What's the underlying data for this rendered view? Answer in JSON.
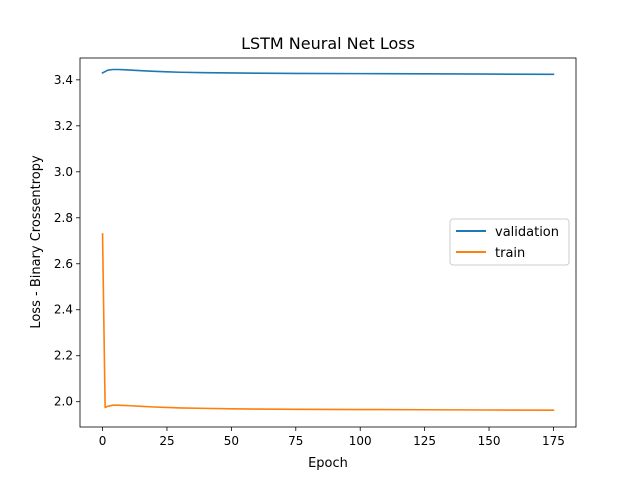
{
  "chart_data": {
    "type": "line",
    "title": "LSTM Neural Net Loss",
    "xlabel": "Epoch",
    "ylabel": "Loss - Binary Crossentropy",
    "xlim": [
      -8.75,
      183.75
    ],
    "ylim": [
      1.89,
      3.495
    ],
    "xticks": [
      0,
      25,
      50,
      75,
      100,
      125,
      150,
      175
    ],
    "yticks": [
      2.0,
      2.2,
      2.4,
      2.6,
      2.8,
      3.0,
      3.2,
      3.4
    ],
    "xtick_labels": [
      "0",
      "25",
      "50",
      "75",
      "100",
      "125",
      "150",
      "175"
    ],
    "ytick_labels": [
      "2.0",
      "2.2",
      "2.4",
      "2.6",
      "2.8",
      "3.0",
      "3.2",
      "3.4"
    ],
    "grid": false,
    "legend_position": "center-right",
    "series": [
      {
        "name": "validation",
        "color": "#1f77b4",
        "x": [
          0,
          2,
          4,
          6,
          8,
          10,
          15,
          20,
          25,
          30,
          40,
          50,
          60,
          75,
          100,
          125,
          150,
          175
        ],
        "y": [
          3.43,
          3.442,
          3.445,
          3.445,
          3.444,
          3.443,
          3.44,
          3.437,
          3.435,
          3.433,
          3.431,
          3.43,
          3.429,
          3.428,
          3.427,
          3.426,
          3.425,
          3.424
        ]
      },
      {
        "name": "train",
        "color": "#ff7f0e",
        "x": [
          0,
          1,
          2,
          4,
          6,
          8,
          10,
          15,
          20,
          25,
          30,
          40,
          50,
          60,
          75,
          100,
          125,
          150,
          175
        ],
        "y": [
          2.73,
          1.975,
          1.98,
          1.985,
          1.985,
          1.984,
          1.983,
          1.98,
          1.977,
          1.975,
          1.973,
          1.971,
          1.969,
          1.968,
          1.967,
          1.966,
          1.965,
          1.964,
          1.963
        ]
      }
    ]
  }
}
